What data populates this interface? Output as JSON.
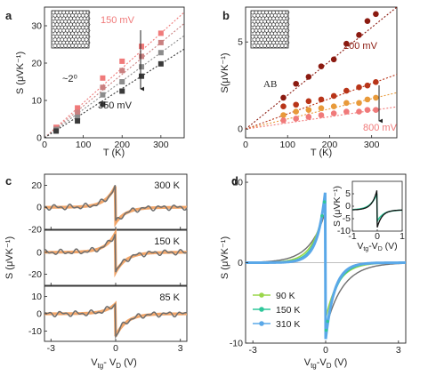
{
  "colors": {
    "a_150": "#f07a7a",
    "a_s2": "#c98080",
    "a_s3": "#8c8c8c",
    "a_350": "#3a3a3a",
    "b_200": "#8b1a10",
    "b_s2": "#b83418",
    "b_s3": "#e89a3a",
    "b_800": "#f07a7a",
    "orange": "#f2a66a",
    "gray": "#6e6e6e",
    "d_90": "#9ad64a",
    "d_150": "#2ec79a",
    "d_310": "#5aa8e8",
    "d_black": "#111111"
  },
  "chart_data": [
    {
      "panel": "a",
      "type": "scatter",
      "xlabel": "T (K)",
      "ylabel": "S (μVK⁻¹)",
      "xlim": [
        0,
        360
      ],
      "ylim": [
        0,
        35
      ],
      "xticks": [
        "0",
        "100",
        "200",
        "300"
      ],
      "yticks": [
        "0",
        "10",
        "20",
        "30"
      ],
      "annotations": {
        "top": "150 mV",
        "bottom": "350 mV",
        "angle": "~2⁰"
      },
      "series": [
        {
          "x": [
            30,
            85,
            150,
            200,
            250,
            300
          ],
          "y": [
            2.8,
            8.0,
            16.0,
            20.5,
            24.5,
            28.0
          ]
        },
        {
          "x": [
            30,
            85,
            150,
            200,
            250,
            300
          ],
          "y": [
            2.4,
            6.8,
            13.5,
            18.0,
            21.8,
            25.5
          ]
        },
        {
          "x": [
            30,
            85,
            150,
            200,
            250,
            300
          ],
          "y": [
            2.1,
            5.5,
            11.5,
            15.0,
            19.0,
            22.8
          ]
        },
        {
          "x": [
            30,
            85,
            150,
            200,
            250,
            300
          ],
          "y": [
            1.8,
            4.5,
            9.0,
            12.5,
            16.5,
            19.8
          ]
        }
      ]
    },
    {
      "panel": "b",
      "type": "scatter",
      "xlabel": "T (K)",
      "ylabel": "S(μVK⁻¹)",
      "xlim": [
        0,
        360
      ],
      "ylim": [
        -0.5,
        7
      ],
      "xticks": [
        "0",
        "100",
        "200",
        "300"
      ],
      "yticks": [
        "0",
        "5"
      ],
      "annotations": {
        "top": "200 mV",
        "bottom": "800 mV",
        "stack": "AB"
      },
      "series": [
        {
          "x": [
            90,
            120,
            150,
            180,
            210,
            240,
            270,
            290,
            310
          ],
          "y": [
            1.8,
            2.6,
            3.0,
            3.6,
            4.0,
            4.9,
            5.4,
            6.2,
            6.6
          ]
        },
        {
          "x": [
            90,
            120,
            150,
            180,
            210,
            240,
            270,
            290,
            310
          ],
          "y": [
            1.3,
            1.4,
            1.6,
            1.7,
            1.9,
            2.2,
            2.4,
            2.5,
            2.7
          ]
        },
        {
          "x": [
            90,
            120,
            150,
            180,
            210,
            240,
            270,
            290,
            310
          ],
          "y": [
            0.8,
            1.0,
            1.1,
            1.2,
            1.3,
            1.5,
            1.5,
            1.7,
            1.8
          ]
        },
        {
          "x": [
            90,
            120,
            150,
            180,
            210,
            240,
            270,
            290,
            310
          ],
          "y": [
            0.5,
            0.6,
            0.7,
            0.8,
            0.9,
            1.0,
            1.0,
            1.1,
            1.1
          ]
        }
      ]
    },
    {
      "panel": "c",
      "type": "line",
      "xlabel": "Vtg - VD (V)",
      "ylabel": "S (μVK⁻¹)",
      "xlim": [
        -3.3,
        3.3
      ],
      "xticks": [
        "-3",
        "0",
        "3"
      ],
      "subplots": [
        {
          "label": "300 K",
          "ylim": [
            -20,
            30
          ],
          "yticks": [
            "20",
            "0",
            "-20"
          ],
          "peak": 20,
          "dip": -14
        },
        {
          "label": "150 K",
          "ylim": [
            -30,
            20
          ],
          "yticks": [
            "0",
            "-20"
          ],
          "peak": 18,
          "dip": -18
        },
        {
          "label": "85 K",
          "ylim": [
            -16,
            16
          ],
          "yticks": [
            "10",
            "0",
            "-10"
          ],
          "peak": 6,
          "dip": -13
        }
      ]
    },
    {
      "panel": "d",
      "type": "line",
      "xlabel": "Vtg-VD (V)",
      "ylabel": "S (μVK⁻¹)",
      "xlim": [
        -3.3,
        3.3
      ],
      "ylim": [
        -10,
        11
      ],
      "xticks": [
        "-3",
        "0",
        "3"
      ],
      "yticks": [
        "10",
        "0",
        "-10"
      ],
      "legend": [
        "90 K",
        "150 K",
        "310 K"
      ],
      "inset": {
        "xlabel": "Vtg-VD (V)",
        "ylabel": "S (μVK⁻¹)",
        "xticks": [
          "-1",
          "0",
          "1"
        ],
        "yticks": [
          "5",
          "0",
          "-5",
          "-10"
        ]
      }
    }
  ]
}
